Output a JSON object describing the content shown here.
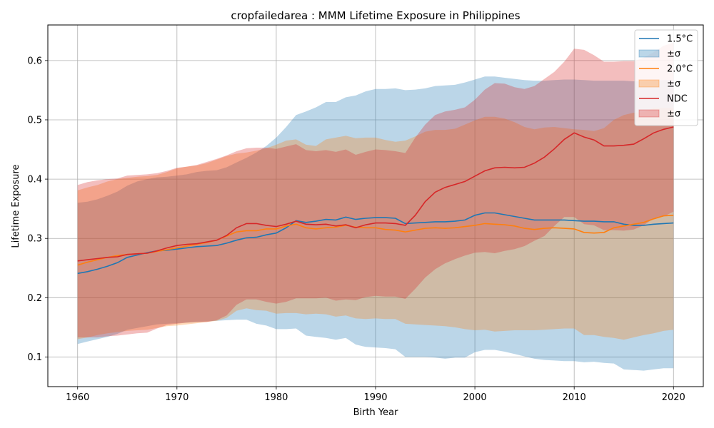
{
  "chart_data": {
    "type": "line",
    "title": "cropfailedarea : MMM Lifetime Exposure in Philippines",
    "xlabel": "Birth Year",
    "ylabel": "Lifetime Exposure",
    "xlim": [
      1957,
      2023
    ],
    "ylim": [
      0.05,
      0.66
    ],
    "xticks": [
      1960,
      1970,
      1980,
      1990,
      2000,
      2010,
      2020
    ],
    "yticks": [
      0.1,
      0.2,
      0.3,
      0.4,
      0.5,
      0.6
    ],
    "grid": true,
    "legend_position": "top-right",
    "years": [
      1960,
      1961,
      1962,
      1963,
      1964,
      1965,
      1966,
      1967,
      1968,
      1969,
      1970,
      1971,
      1972,
      1973,
      1974,
      1975,
      1976,
      1977,
      1978,
      1979,
      1980,
      1981,
      1982,
      1983,
      1984,
      1985,
      1986,
      1987,
      1988,
      1989,
      1990,
      1991,
      1992,
      1993,
      1994,
      1995,
      1996,
      1997,
      1998,
      1999,
      2000,
      2001,
      2002,
      2003,
      2004,
      2005,
      2006,
      2007,
      2008,
      2009,
      2010,
      2011,
      2012,
      2013,
      2014,
      2015,
      2016,
      2017,
      2018,
      2019,
      2020
    ],
    "series": [
      {
        "name": "1.5°C",
        "band_label": "±σ",
        "color": "#1f77b4",
        "band_color": "#1f77b4",
        "mean": [
          0.241,
          0.244,
          0.248,
          0.253,
          0.259,
          0.268,
          0.272,
          0.276,
          0.279,
          0.28,
          0.282,
          0.284,
          0.286,
          0.287,
          0.288,
          0.292,
          0.297,
          0.301,
          0.302,
          0.306,
          0.309,
          0.318,
          0.33,
          0.327,
          0.329,
          0.332,
          0.331,
          0.336,
          0.332,
          0.334,
          0.335,
          0.335,
          0.334,
          0.325,
          0.326,
          0.327,
          0.328,
          0.328,
          0.329,
          0.331,
          0.339,
          0.343,
          0.343,
          0.34,
          0.337,
          0.334,
          0.331,
          0.331,
          0.331,
          0.331,
          0.33,
          0.329,
          0.329,
          0.328,
          0.328,
          0.324,
          0.322,
          0.322,
          0.324,
          0.325,
          0.326
        ],
        "upper": [
          0.36,
          0.362,
          0.366,
          0.372,
          0.379,
          0.389,
          0.396,
          0.4,
          0.403,
          0.404,
          0.406,
          0.408,
          0.412,
          0.414,
          0.415,
          0.42,
          0.428,
          0.436,
          0.445,
          0.456,
          0.47,
          0.488,
          0.508,
          0.514,
          0.521,
          0.53,
          0.53,
          0.538,
          0.541,
          0.548,
          0.552,
          0.552,
          0.553,
          0.55,
          0.551,
          0.553,
          0.557,
          0.558,
          0.559,
          0.563,
          0.568,
          0.573,
          0.573,
          0.571,
          0.569,
          0.567,
          0.566,
          0.566,
          0.567,
          0.568,
          0.568,
          0.567,
          0.566,
          0.566,
          0.566,
          0.566,
          0.565,
          0.565,
          0.566,
          0.567,
          0.567
        ],
        "lower": [
          0.122,
          0.126,
          0.13,
          0.134,
          0.139,
          0.146,
          0.149,
          0.152,
          0.155,
          0.156,
          0.157,
          0.158,
          0.159,
          0.16,
          0.161,
          0.162,
          0.163,
          0.163,
          0.156,
          0.153,
          0.147,
          0.147,
          0.148,
          0.136,
          0.134,
          0.132,
          0.129,
          0.132,
          0.121,
          0.117,
          0.116,
          0.115,
          0.113,
          0.1,
          0.1,
          0.1,
          0.099,
          0.097,
          0.099,
          0.099,
          0.108,
          0.112,
          0.112,
          0.109,
          0.105,
          0.101,
          0.097,
          0.095,
          0.094,
          0.093,
          0.093,
          0.091,
          0.092,
          0.09,
          0.089,
          0.079,
          0.078,
          0.077,
          0.079,
          0.081,
          0.081
        ]
      },
      {
        "name": "2.0°C",
        "band_label": "±σ",
        "color": "#ff7f0e",
        "band_color": "#ff7f0e",
        "mean": [
          0.255,
          0.26,
          0.264,
          0.268,
          0.271,
          0.273,
          0.274,
          0.275,
          0.278,
          0.281,
          0.284,
          0.287,
          0.29,
          0.293,
          0.297,
          0.304,
          0.311,
          0.313,
          0.313,
          0.316,
          0.316,
          0.321,
          0.324,
          0.318,
          0.316,
          0.318,
          0.319,
          0.322,
          0.319,
          0.318,
          0.318,
          0.315,
          0.314,
          0.311,
          0.314,
          0.317,
          0.318,
          0.317,
          0.318,
          0.32,
          0.322,
          0.325,
          0.324,
          0.323,
          0.321,
          0.317,
          0.315,
          0.317,
          0.318,
          0.317,
          0.316,
          0.31,
          0.309,
          0.31,
          0.318,
          0.321,
          0.324,
          0.327,
          0.333,
          0.338,
          0.339
        ],
        "upper": [
          0.381,
          0.386,
          0.39,
          0.396,
          0.4,
          0.402,
          0.404,
          0.405,
          0.407,
          0.412,
          0.418,
          0.421,
          0.423,
          0.427,
          0.433,
          0.439,
          0.443,
          0.445,
          0.448,
          0.452,
          0.458,
          0.465,
          0.467,
          0.458,
          0.456,
          0.467,
          0.47,
          0.473,
          0.469,
          0.47,
          0.47,
          0.466,
          0.463,
          0.465,
          0.472,
          0.48,
          0.483,
          0.483,
          0.485,
          0.492,
          0.499,
          0.505,
          0.505,
          0.502,
          0.496,
          0.488,
          0.484,
          0.487,
          0.488,
          0.486,
          0.484,
          0.483,
          0.481,
          0.486,
          0.5,
          0.508,
          0.512,
          0.513,
          0.52,
          0.52,
          0.52
        ],
        "lower": [
          0.13,
          0.133,
          0.137,
          0.14,
          0.142,
          0.144,
          0.145,
          0.146,
          0.149,
          0.152,
          0.153,
          0.155,
          0.157,
          0.159,
          0.161,
          0.166,
          0.178,
          0.182,
          0.179,
          0.178,
          0.173,
          0.174,
          0.174,
          0.172,
          0.173,
          0.172,
          0.168,
          0.17,
          0.165,
          0.164,
          0.165,
          0.164,
          0.164,
          0.156,
          0.155,
          0.154,
          0.153,
          0.152,
          0.15,
          0.147,
          0.145,
          0.146,
          0.143,
          0.144,
          0.145,
          0.145,
          0.145,
          0.146,
          0.147,
          0.148,
          0.148,
          0.137,
          0.137,
          0.134,
          0.132,
          0.129,
          0.133,
          0.137,
          0.14,
          0.144,
          0.146
        ]
      },
      {
        "name": "NDC",
        "band_label": "±σ",
        "color": "#d62728",
        "band_color": "#d62728",
        "mean": [
          0.262,
          0.264,
          0.266,
          0.268,
          0.269,
          0.273,
          0.274,
          0.275,
          0.279,
          0.284,
          0.288,
          0.29,
          0.291,
          0.294,
          0.297,
          0.305,
          0.318,
          0.325,
          0.325,
          0.322,
          0.32,
          0.324,
          0.329,
          0.324,
          0.323,
          0.324,
          0.321,
          0.323,
          0.318,
          0.323,
          0.326,
          0.326,
          0.325,
          0.322,
          0.339,
          0.362,
          0.378,
          0.386,
          0.391,
          0.396,
          0.405,
          0.414,
          0.419,
          0.42,
          0.419,
          0.42,
          0.427,
          0.437,
          0.451,
          0.467,
          0.478,
          0.471,
          0.466,
          0.456,
          0.456,
          0.457,
          0.459,
          0.468,
          0.478,
          0.484,
          0.488
        ],
        "upper": [
          0.39,
          0.395,
          0.398,
          0.4,
          0.401,
          0.406,
          0.407,
          0.408,
          0.41,
          0.414,
          0.419,
          0.421,
          0.424,
          0.429,
          0.434,
          0.44,
          0.447,
          0.452,
          0.453,
          0.453,
          0.451,
          0.455,
          0.459,
          0.449,
          0.447,
          0.449,
          0.446,
          0.45,
          0.441,
          0.446,
          0.45,
          0.449,
          0.447,
          0.444,
          0.47,
          0.492,
          0.508,
          0.514,
          0.517,
          0.521,
          0.534,
          0.551,
          0.562,
          0.561,
          0.555,
          0.552,
          0.557,
          0.569,
          0.581,
          0.598,
          0.62,
          0.618,
          0.609,
          0.598,
          0.598,
          0.599,
          0.599,
          0.605,
          0.614,
          0.625,
          0.63
        ],
        "lower": [
          0.133,
          0.133,
          0.133,
          0.135,
          0.136,
          0.138,
          0.14,
          0.141,
          0.148,
          0.154,
          0.156,
          0.158,
          0.159,
          0.159,
          0.162,
          0.17,
          0.188,
          0.197,
          0.197,
          0.193,
          0.19,
          0.193,
          0.199,
          0.199,
          0.199,
          0.2,
          0.195,
          0.197,
          0.196,
          0.201,
          0.203,
          0.202,
          0.202,
          0.198,
          0.215,
          0.234,
          0.248,
          0.258,
          0.265,
          0.271,
          0.276,
          0.277,
          0.275,
          0.279,
          0.282,
          0.287,
          0.296,
          0.304,
          0.321,
          0.336,
          0.336,
          0.324,
          0.322,
          0.314,
          0.314,
          0.313,
          0.315,
          0.322,
          0.334,
          0.337,
          0.345
        ]
      }
    ]
  }
}
